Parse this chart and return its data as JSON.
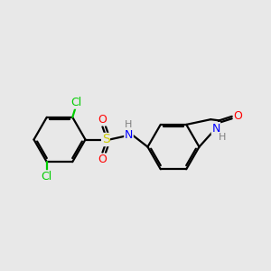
{
  "background_color": "#e8e8e8",
  "bond_color": "#000000",
  "bond_width": 1.6,
  "atom_colors": {
    "C": "#000000",
    "H": "#808080",
    "N": "#0000ff",
    "O": "#ff0000",
    "S": "#cccc00",
    "Cl": "#00cc00"
  },
  "font_size": 9,
  "fig_width": 3.0,
  "fig_height": 3.0
}
